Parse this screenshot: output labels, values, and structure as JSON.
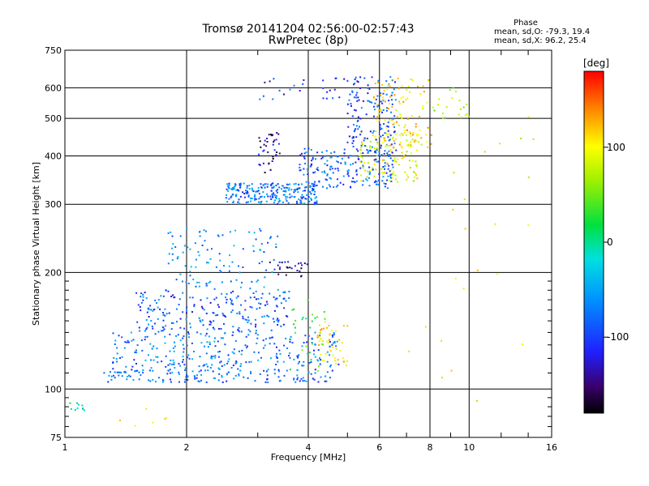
{
  "header": {
    "title_line1": "Tromsø 20141204 02:56:00-02:57:43",
    "title_line2": "RwPretec (8p)"
  },
  "phase_info": {
    "heading": "Phase",
    "line_o": "mean, sd,O: -79.3, 19.4",
    "line_x": "mean, sd,X:  96.2, 25.4"
  },
  "colorbar": {
    "unit_label": "[deg]",
    "range": [
      -180,
      180
    ],
    "ticks": [
      {
        "value": 100,
        "label": "100"
      },
      {
        "value": 0,
        "label": "0"
      },
      {
        "value": -100,
        "label": "-100"
      }
    ],
    "colormap": "rainbow-black-to-red"
  },
  "chart_data": {
    "type": "scatter",
    "title": "Tromsø 20141204 02:56:00-02:57:43",
    "subtitle": "RwPretec (8p)",
    "xlabel": "Frequency [MHz]",
    "ylabel": "Stationary phase Virtual Height [km]",
    "xscale": "log",
    "yscale": "log",
    "xlim": [
      1,
      16
    ],
    "ylim": [
      75,
      750
    ],
    "grid": true,
    "xticks": [
      {
        "value": 1,
        "label": "1"
      },
      {
        "value": 2,
        "label": "2"
      },
      {
        "value": 4,
        "label": "4"
      },
      {
        "value": 6,
        "label": "6"
      },
      {
        "value": 8,
        "label": "8"
      },
      {
        "value": 10,
        "label": "10"
      },
      {
        "value": 16,
        "label": "16"
      }
    ],
    "xminor": [
      3,
      5,
      7,
      9,
      12,
      14
    ],
    "yticks": [
      {
        "value": 75,
        "label": "75"
      },
      {
        "value": 100,
        "label": "100"
      },
      {
        "value": 200,
        "label": "200"
      },
      {
        "value": 300,
        "label": "300"
      },
      {
        "value": 400,
        "label": "400"
      },
      {
        "value": 500,
        "label": "500"
      },
      {
        "value": 600,
        "label": "600"
      },
      {
        "value": 750,
        "label": "750"
      }
    ],
    "color_encodes": "phase [deg]",
    "clusters": [
      {
        "x": [
          1.25,
          4.6
        ],
        "y": [
          104,
          112
        ],
        "phase": -90,
        "n": 140
      },
      {
        "x": [
          1.3,
          4.8
        ],
        "y": [
          112,
          140
        ],
        "phase": -85,
        "n": 260
      },
      {
        "x": [
          1.5,
          3.6
        ],
        "y": [
          140,
          180
        ],
        "phase": -100,
        "n": 220
      },
      {
        "x": [
          1.8,
          3.4
        ],
        "y": [
          180,
          260
        ],
        "phase": -75,
        "n": 110
      },
      {
        "x": [
          3.2,
          4.0
        ],
        "y": [
          195,
          215
        ],
        "phase": -140,
        "n": 25
      },
      {
        "x": [
          4.2,
          5.0
        ],
        "y": [
          115,
          150
        ],
        "phase": 110,
        "n": 45
      },
      {
        "x": [
          3.6,
          4.4
        ],
        "y": [
          110,
          170
        ],
        "phase": 20,
        "n": 30
      },
      {
        "x": [
          2.5,
          4.2
        ],
        "y": [
          300,
          340
        ],
        "phase": -90,
        "n": 230
      },
      {
        "x": [
          3.8,
          6.5
        ],
        "y": [
          330,
          420
        ],
        "phase": -95,
        "n": 190
      },
      {
        "x": [
          5.3,
          7.5
        ],
        "y": [
          340,
          460
        ],
        "phase": 90,
        "n": 120
      },
      {
        "x": [
          5.0,
          6.6
        ],
        "y": [
          400,
          640
        ],
        "phase": -100,
        "n": 150
      },
      {
        "x": [
          5.8,
          8.2
        ],
        "y": [
          420,
          640
        ],
        "phase": 110,
        "n": 110
      },
      {
        "x": [
          3.0,
          3.4
        ],
        "y": [
          360,
          460
        ],
        "phase": -140,
        "n": 40
      },
      {
        "x": [
          3.0,
          5.0
        ],
        "y": [
          560,
          640
        ],
        "phase": -110,
        "n": 25
      },
      {
        "x": [
          8.2,
          10.0
        ],
        "y": [
          500,
          600
        ],
        "phase": 60,
        "n": 20
      },
      {
        "x": [
          1.03,
          1.12
        ],
        "y": [
          88,
          92
        ],
        "phase": -20,
        "n": 10
      },
      {
        "x": [
          1.3,
          2.0
        ],
        "y": [
          80,
          90
        ],
        "phase": 120,
        "n": 6
      },
      {
        "x": [
          6.0,
          15.0
        ],
        "y": [
          90,
          600
        ],
        "phase": 90,
        "n": 25
      }
    ]
  }
}
